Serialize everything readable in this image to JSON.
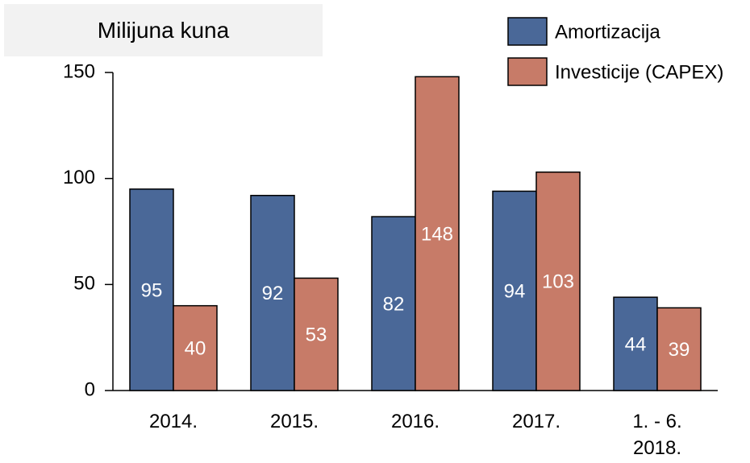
{
  "chart_data": {
    "type": "bar",
    "title": "Milijuna kuna",
    "categories": [
      "2014.",
      "2015.",
      "2016.",
      "2017.",
      "1. - 6. 2018."
    ],
    "series": [
      {
        "name": "Amortizacija",
        "color": "#4a6898",
        "values": [
          95,
          92,
          82,
          94,
          44
        ]
      },
      {
        "name": "Investicije (CAPEX)",
        "color": "#c77b68",
        "values": [
          40,
          53,
          148,
          103,
          39
        ]
      }
    ],
    "ylim": [
      0,
      150
    ],
    "yticks": [
      0,
      50,
      100,
      150
    ],
    "legend": "top-right"
  }
}
